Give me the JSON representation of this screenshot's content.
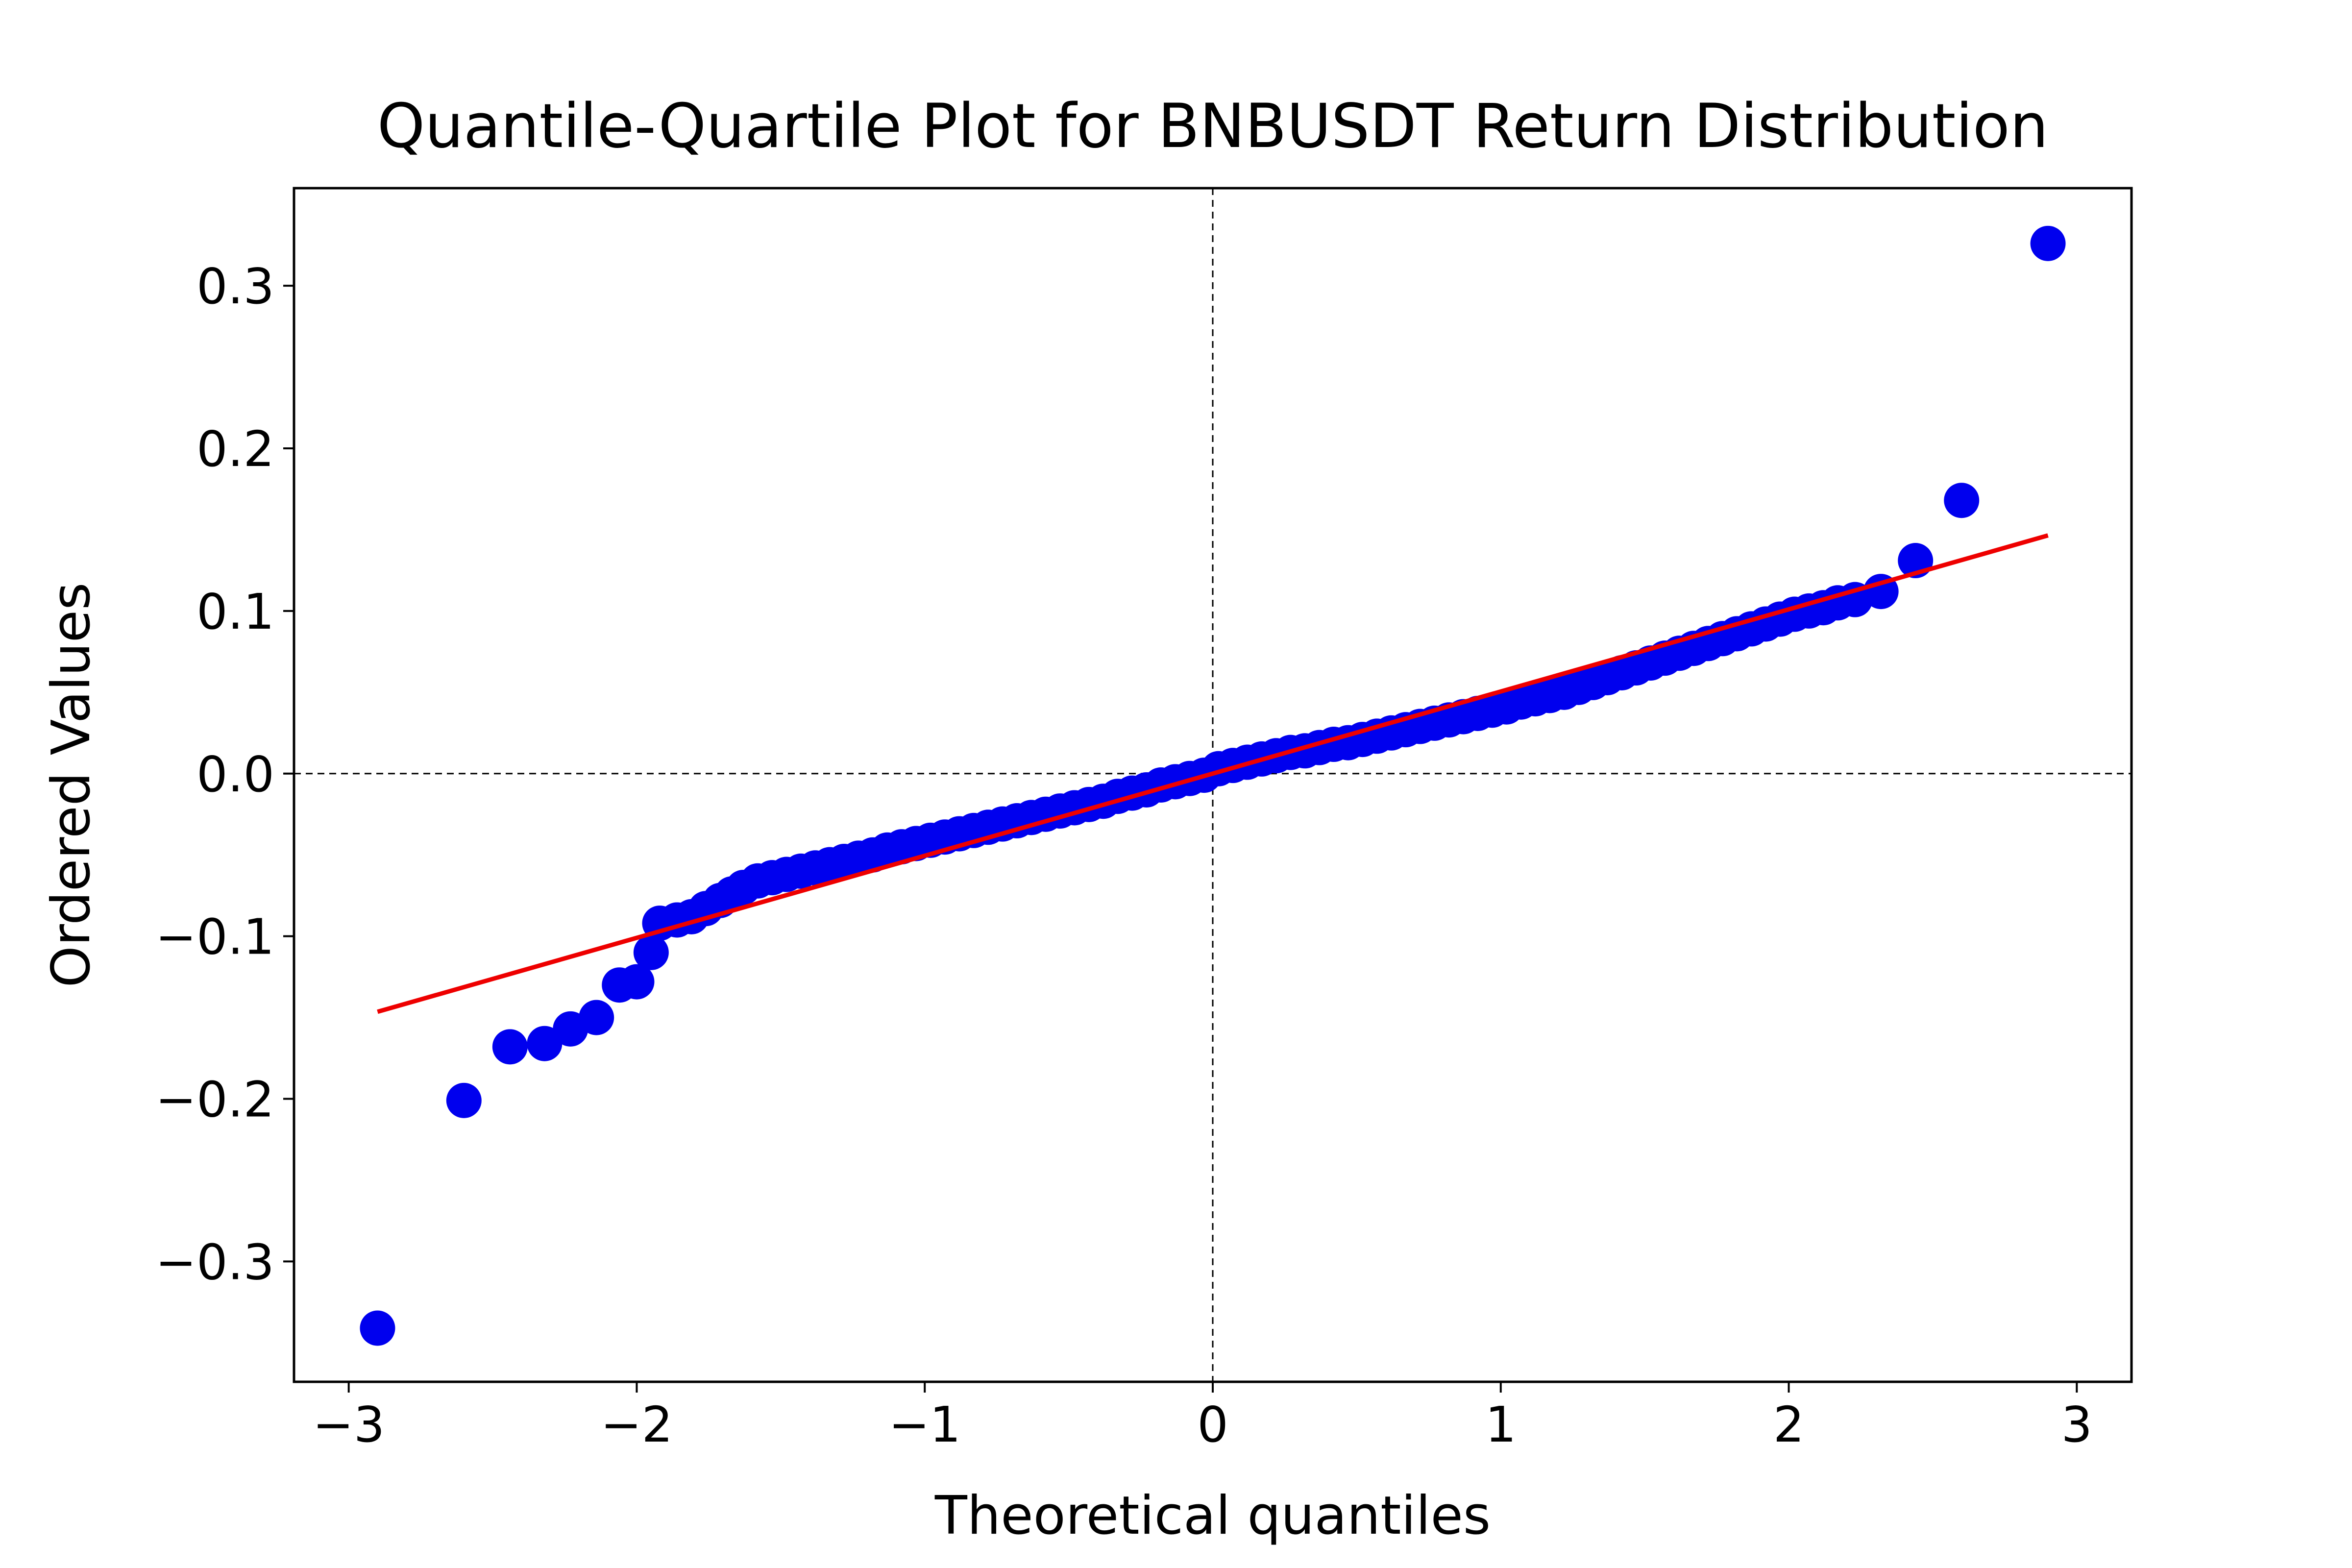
{
  "chart_data": {
    "type": "scatter",
    "title": "Quantile-Quartile Plot for BNBUSDT Return Distribution",
    "xlabel": "Theoretical quantiles",
    "ylabel": "Ordered Values",
    "xlim": [
      -3.19,
      3.19
    ],
    "ylim": [
      -0.374,
      0.36
    ],
    "x_ticks": [
      -3,
      -2,
      -1,
      0,
      1,
      2,
      3
    ],
    "x_tick_labels": [
      "−3",
      "−2",
      "−1",
      "0",
      "1",
      "2",
      "3"
    ],
    "y_ticks": [
      -0.3,
      -0.2,
      -0.1,
      0.0,
      0.1,
      0.2,
      0.3
    ],
    "y_tick_labels": [
      "−0.3",
      "−0.2",
      "−0.1",
      "0.0",
      "0.1",
      "0.2",
      "0.3"
    ],
    "grid": false,
    "reference_lines": {
      "x": 0,
      "y": 0,
      "style": "dashed",
      "color": "#000000"
    },
    "marker_color": "#0000ee",
    "fit_color": "#ee0000",
    "fit_line": {
      "slope": 0.0505,
      "intercept": 0.0
    },
    "points": {
      "x": [
        -2.9,
        -2.6,
        -2.44,
        -2.32,
        -2.23,
        -2.14,
        -2.06,
        -2.0,
        -1.95,
        -1.92,
        -1.86,
        -1.81,
        -1.76,
        -1.71,
        -1.67,
        -1.63,
        -1.58,
        -1.53,
        -1.48,
        -1.43,
        -1.38,
        -1.33,
        -1.28,
        -1.23,
        -1.18,
        -1.13,
        -1.08,
        -1.03,
        -0.98,
        -0.93,
        -0.88,
        -0.83,
        -0.78,
        -0.73,
        -0.68,
        -0.63,
        -0.58,
        -0.53,
        -0.48,
        -0.43,
        -0.38,
        -0.33,
        -0.28,
        -0.23,
        -0.18,
        -0.13,
        -0.08,
        -0.03,
        0.02,
        0.07,
        0.12,
        0.17,
        0.22,
        0.27,
        0.32,
        0.37,
        0.42,
        0.47,
        0.52,
        0.57,
        0.62,
        0.67,
        0.72,
        0.77,
        0.82,
        0.87,
        0.92,
        0.97,
        1.02,
        1.07,
        1.12,
        1.17,
        1.22,
        1.27,
        1.32,
        1.37,
        1.42,
        1.47,
        1.52,
        1.57,
        1.62,
        1.67,
        1.72,
        1.77,
        1.82,
        1.87,
        1.92,
        1.97,
        2.02,
        2.07,
        2.12,
        2.17,
        2.23,
        2.32,
        2.44,
        2.6,
        2.9
      ],
      "y": [
        -0.341,
        -0.201,
        -0.168,
        -0.166,
        -0.157,
        -0.15,
        -0.13,
        -0.128,
        -0.11,
        -0.092,
        -0.09,
        -0.088,
        -0.083,
        -0.078,
        -0.074,
        -0.07,
        -0.066,
        -0.064,
        -0.062,
        -0.06,
        -0.058,
        -0.056,
        -0.054,
        -0.052,
        -0.05,
        -0.047,
        -0.045,
        -0.043,
        -0.041,
        -0.039,
        -0.037,
        -0.035,
        -0.033,
        -0.031,
        -0.029,
        -0.027,
        -0.025,
        -0.023,
        -0.021,
        -0.019,
        -0.017,
        -0.014,
        -0.012,
        -0.01,
        -0.007,
        -0.005,
        -0.003,
        -0.001,
        0.003,
        0.005,
        0.007,
        0.009,
        0.011,
        0.013,
        0.014,
        0.016,
        0.018,
        0.019,
        0.021,
        0.023,
        0.025,
        0.027,
        0.029,
        0.031,
        0.033,
        0.035,
        0.037,
        0.039,
        0.041,
        0.044,
        0.046,
        0.048,
        0.05,
        0.053,
        0.056,
        0.059,
        0.062,
        0.065,
        0.068,
        0.071,
        0.074,
        0.077,
        0.08,
        0.083,
        0.086,
        0.089,
        0.092,
        0.095,
        0.098,
        0.1,
        0.102,
        0.105,
        0.107,
        0.112,
        0.131,
        0.168,
        0.326
      ]
    }
  }
}
